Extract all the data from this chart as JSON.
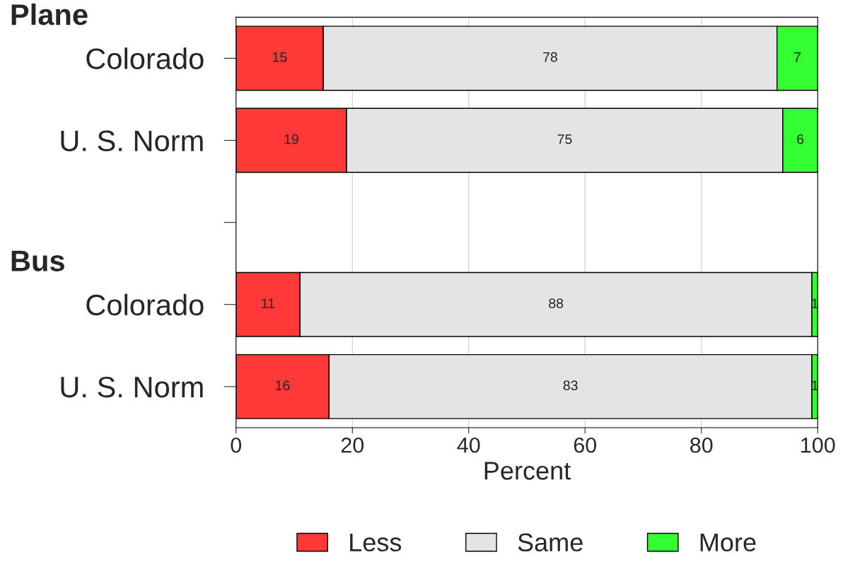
{
  "chart_data": {
    "type": "bar",
    "orientation": "horizontal",
    "stacked": true,
    "xlabel": "Percent",
    "categories": [
      "Colorado",
      "U. S. Norm",
      null,
      "Colorado",
      "U. S. Norm"
    ],
    "series": [
      {
        "name": "Less",
        "color": "#ff3838",
        "values": [
          15,
          19,
          null,
          11,
          16
        ]
      },
      {
        "name": "Same",
        "color": "#e4e4e4",
        "values": [
          78,
          75,
          null,
          88,
          83
        ]
      },
      {
        "name": "More",
        "color": "#33ff33",
        "values": [
          7,
          6,
          null,
          1,
          1
        ]
      }
    ],
    "xlim": [
      0,
      100
    ],
    "xticks": [
      0,
      20,
      40,
      60,
      80,
      100
    ],
    "grid": "x",
    "legend": "bottom",
    "data_labels": true,
    "annotations": [
      "Plane",
      "Bus"
    ]
  }
}
